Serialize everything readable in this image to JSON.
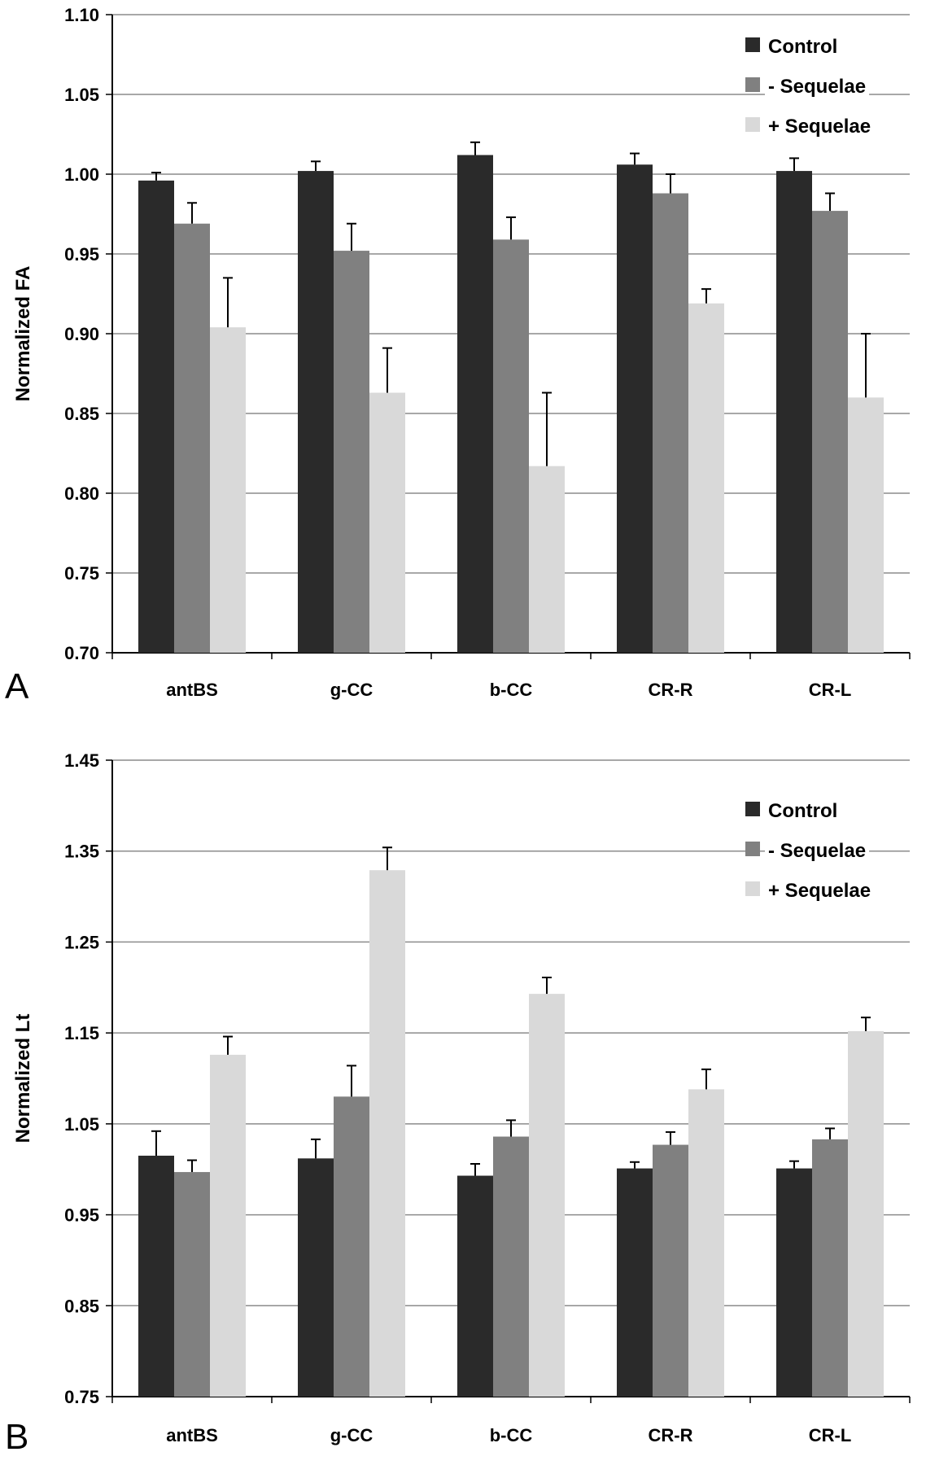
{
  "colors": {
    "control": "#2a2a2a",
    "minus_sequelae": "#808080",
    "plus_sequelae": "#d9d9d9",
    "grid": "#8c8c8c",
    "axis": "#000000"
  },
  "chart_data": [
    {
      "type": "bar",
      "panel_label": "A",
      "title": "",
      "xlabel": "",
      "ylabel": "Normalized FA",
      "ylim": [
        0.7,
        1.1
      ],
      "yticks": [
        "0.70",
        "0.75",
        "0.80",
        "0.85",
        "0.90",
        "0.95",
        "1.00",
        "1.05",
        "1.10"
      ],
      "grid": true,
      "legend_position": "top-right",
      "categories": [
        "antBS",
        "g-CC",
        "b-CC",
        "CR-R",
        "CR-L"
      ],
      "series": [
        {
          "name": "Control",
          "color_key": "control",
          "values": [
            0.996,
            1.002,
            1.012,
            1.006,
            1.002
          ],
          "errors": [
            0.005,
            0.006,
            0.008,
            0.007,
            0.008
          ]
        },
        {
          "name": "- Sequelae",
          "color_key": "minus_sequelae",
          "values": [
            0.969,
            0.952,
            0.959,
            0.988,
            0.977
          ],
          "errors": [
            0.013,
            0.017,
            0.014,
            0.012,
            0.011
          ]
        },
        {
          "name": "+ Sequelae",
          "color_key": "plus_sequelae",
          "values": [
            0.904,
            0.863,
            0.817,
            0.919,
            0.86
          ],
          "errors": [
            0.031,
            0.028,
            0.046,
            0.009,
            0.04
          ]
        }
      ]
    },
    {
      "type": "bar",
      "panel_label": "B",
      "title": "",
      "xlabel": "",
      "ylabel": "Normalized Lt",
      "ylim": [
        0.75,
        1.45
      ],
      "yticks": [
        "0.75",
        "0.85",
        "0.95",
        "1.05",
        "1.15",
        "1.25",
        "1.35",
        "1.45"
      ],
      "grid": true,
      "legend_position": "top-right",
      "categories": [
        "antBS",
        "g-CC",
        "b-CC",
        "CR-R",
        "CR-L"
      ],
      "series": [
        {
          "name": "Control",
          "color_key": "control",
          "values": [
            1.015,
            1.012,
            0.993,
            1.001,
            1.001
          ],
          "errors": [
            0.027,
            0.021,
            0.013,
            0.007,
            0.008
          ]
        },
        {
          "name": "- Sequelae",
          "color_key": "minus_sequelae",
          "values": [
            0.997,
            1.08,
            1.036,
            1.027,
            1.033
          ],
          "errors": [
            0.013,
            0.034,
            0.018,
            0.014,
            0.012
          ]
        },
        {
          "name": "+ Sequelae",
          "color_key": "plus_sequelae",
          "values": [
            1.126,
            1.329,
            1.193,
            1.088,
            1.152
          ],
          "errors": [
            0.02,
            0.025,
            0.018,
            0.022,
            0.015
          ]
        }
      ]
    }
  ]
}
